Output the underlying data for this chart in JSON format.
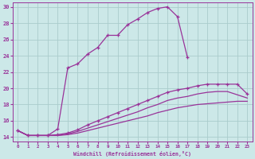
{
  "xlabel": "Windchill (Refroidissement éolien,°C)",
  "bg_color": "#cce8e8",
  "grid_color": "#aacccc",
  "line_color": "#993399",
  "xlim": [
    -0.5,
    23.5
  ],
  "ylim": [
    13.5,
    30.5
  ],
  "yticks": [
    14,
    16,
    18,
    20,
    22,
    24,
    26,
    28,
    30
  ],
  "xticks": [
    0,
    1,
    2,
    3,
    4,
    5,
    6,
    7,
    8,
    9,
    10,
    11,
    12,
    13,
    14,
    15,
    16,
    17,
    18,
    19,
    20,
    21,
    22,
    23
  ],
  "lines": [
    {
      "x": [
        0,
        1,
        2,
        3,
        4,
        5,
        6,
        7,
        8,
        9,
        10,
        11,
        12,
        13,
        14,
        15,
        16,
        17
      ],
      "y": [
        14.8,
        14.2,
        14.2,
        14.2,
        15.0,
        22.5,
        23.0,
        24.2,
        25.0,
        26.5,
        26.5,
        27.8,
        28.5,
        29.3,
        29.8,
        30.0,
        28.8,
        23.8
      ],
      "marker": "+",
      "linestyle": "-",
      "markersize": 3.5
    },
    {
      "x": [
        0,
        1,
        2,
        3,
        4,
        5,
        6,
        7,
        8,
        9,
        10,
        11,
        12,
        13,
        14,
        15,
        16,
        17,
        18,
        19,
        20,
        21,
        22,
        23
      ],
      "y": [
        14.8,
        14.2,
        14.2,
        14.2,
        14.3,
        14.5,
        14.9,
        15.5,
        16.0,
        16.5,
        17.0,
        17.5,
        18.0,
        18.5,
        19.0,
        19.5,
        19.8,
        20.0,
        20.3,
        20.5,
        20.5,
        20.5,
        20.5,
        19.3
      ],
      "marker": "+",
      "linestyle": "-",
      "markersize": 3.5
    },
    {
      "x": [
        0,
        1,
        2,
        3,
        4,
        5,
        6,
        7,
        8,
        9,
        10,
        11,
        12,
        13,
        14,
        15,
        16,
        17,
        18,
        19,
        20,
        21,
        22,
        23
      ],
      "y": [
        14.8,
        14.2,
        14.2,
        14.2,
        14.2,
        14.4,
        14.7,
        15.1,
        15.5,
        15.9,
        16.3,
        16.7,
        17.1,
        17.6,
        18.0,
        18.5,
        18.8,
        19.0,
        19.3,
        19.5,
        19.6,
        19.6,
        19.2,
        18.8
      ],
      "marker": null,
      "linestyle": "-",
      "markersize": 0
    },
    {
      "x": [
        0,
        1,
        2,
        3,
        4,
        5,
        6,
        7,
        8,
        9,
        10,
        11,
        12,
        13,
        14,
        15,
        16,
        17,
        18,
        19,
        20,
        21,
        22,
        23
      ],
      "y": [
        14.8,
        14.2,
        14.2,
        14.2,
        14.2,
        14.3,
        14.5,
        14.8,
        15.1,
        15.4,
        15.7,
        16.0,
        16.3,
        16.6,
        17.0,
        17.3,
        17.6,
        17.8,
        18.0,
        18.1,
        18.2,
        18.3,
        18.4,
        18.4
      ],
      "marker": null,
      "linestyle": "-",
      "markersize": 0
    }
  ]
}
